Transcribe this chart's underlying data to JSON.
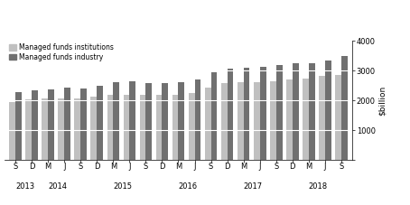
{
  "x_tick_labels": [
    "S",
    "D",
    "M",
    "J",
    "S",
    "D",
    "M",
    "J",
    "S",
    "D",
    "M",
    "J",
    "S",
    "D",
    "M",
    "J",
    "S",
    "D",
    "M",
    "J",
    "S"
  ],
  "year_labels": [
    "2013",
    "2014",
    "2015",
    "2016",
    "2017",
    "2018"
  ],
  "year_tick_positions": [
    0,
    2,
    6,
    10,
    14,
    18
  ],
  "institutions": [
    1950,
    2030,
    2060,
    2080,
    2080,
    2120,
    2190,
    2200,
    2180,
    2180,
    2200,
    2240,
    2440,
    2580,
    2620,
    2600,
    2630,
    2700,
    2730,
    2830,
    2870
  ],
  "industry": [
    2280,
    2340,
    2380,
    2440,
    2400,
    2480,
    2600,
    2630,
    2590,
    2590,
    2620,
    2710,
    2950,
    3080,
    3090,
    3130,
    3200,
    3250,
    3250,
    3330,
    3500
  ],
  "color_institutions": "#c0c0c0",
  "color_industry": "#707070",
  "ylabel_right": "$billion",
  "ylim": [
    0,
    4000
  ],
  "yticks": [
    0,
    1000,
    2000,
    3000,
    4000
  ],
  "bar_width": 0.38,
  "legend_labels": [
    "Managed funds institutions",
    "Managed funds industry"
  ],
  "background_color": "#ffffff",
  "grid_color": "#ffffff",
  "gridline_values": [
    1000,
    2000,
    3000
  ]
}
